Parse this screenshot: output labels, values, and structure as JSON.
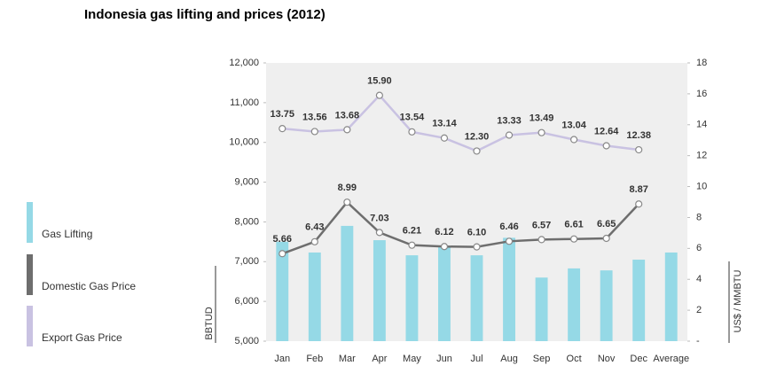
{
  "chart_data": {
    "type": "bar_line",
    "title": "Indonesia gas lifting and prices (2012)",
    "y_label": "BBTUD",
    "y2_label": "US$ / MMBTU",
    "categories": [
      "Jan",
      "Feb",
      "Mar",
      "Apr",
      "May",
      "Jun",
      "Jul",
      "Aug",
      "Sep",
      "Oct",
      "Nov",
      "Dec",
      "Average"
    ],
    "ylim": [
      5000,
      12000
    ],
    "yticks": [
      {
        "value": 5000,
        "label": "5,000"
      },
      {
        "value": 6000,
        "label": "6,000"
      },
      {
        "value": 7000,
        "label": "7,000"
      },
      {
        "value": 8000,
        "label": "8,000"
      },
      {
        "value": 9000,
        "label": "9,000"
      },
      {
        "value": 10000,
        "label": "10,000"
      },
      {
        "value": 11000,
        "label": "11,000"
      },
      {
        "value": 12000,
        "label": "12,000"
      }
    ],
    "y2lim": [
      0,
      18
    ],
    "y2ticks": [
      {
        "value": 0,
        "label": "-"
      },
      2,
      4,
      6,
      8,
      10,
      12,
      14,
      16,
      18
    ],
    "grid": false,
    "series": [
      {
        "name": "Gas Lifting",
        "kind": "bar",
        "color": "#95d9e6",
        "values": [
          7500,
          7230,
          7900,
          7540,
          7160,
          7400,
          7160,
          7600,
          6600,
          6830,
          6780,
          7050,
          7230
        ]
      },
      {
        "name": "Domestic Gas Price",
        "kind": "line",
        "axis": "y2",
        "color": "#6e6e6e",
        "values": [
          5.66,
          6.43,
          8.99,
          7.03,
          6.21,
          6.12,
          6.1,
          6.46,
          6.57,
          6.61,
          6.65,
          8.87,
          null
        ],
        "value_labels": [
          "5.66",
          "6.43",
          "8.99",
          "7.03",
          "6.21",
          "6.12",
          "6.10",
          "6.46",
          "6.57",
          "6.61",
          "6.65",
          "8.87",
          null
        ]
      },
      {
        "name": "Export Gas Price",
        "kind": "line",
        "axis": "y2",
        "color": "#c9c2e2",
        "values": [
          13.75,
          13.56,
          13.68,
          15.9,
          13.54,
          13.14,
          12.3,
          13.33,
          13.49,
          13.04,
          12.64,
          12.38,
          null
        ],
        "value_labels": [
          "13.75",
          "13.56",
          "13.68",
          "15.90",
          "13.54",
          "13.14",
          "12.30",
          "13.33",
          "13.49",
          "13.04",
          "12.64",
          "12.38",
          null
        ]
      }
    ]
  }
}
